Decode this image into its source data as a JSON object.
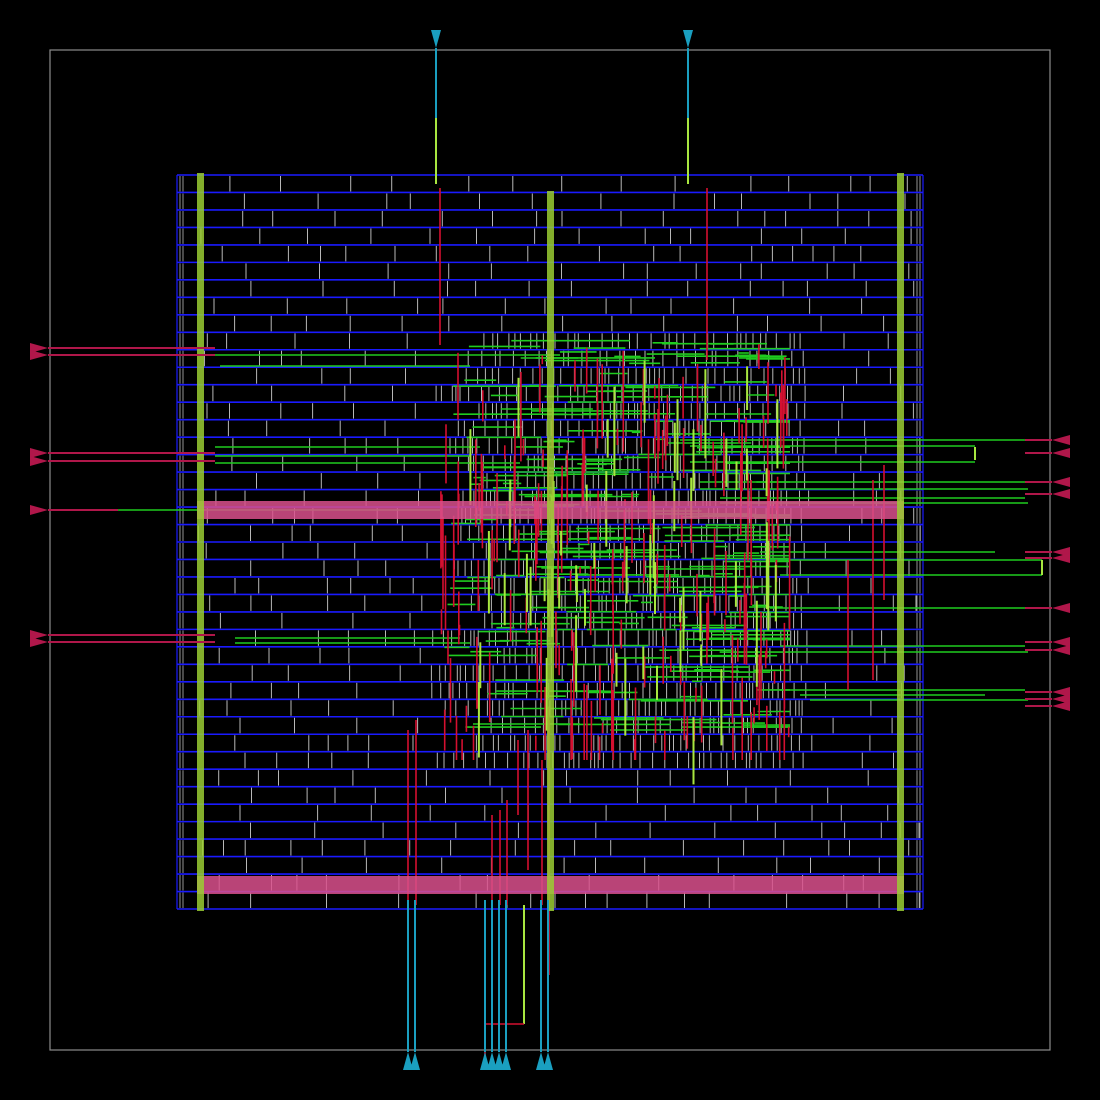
{
  "view": {
    "kind": "chip-layout",
    "colors": {
      "background": "#000000",
      "die_boundary": "#8c8c8c",
      "core_rows": "#1a1aff",
      "cell_boundaries": "#b8b8b8",
      "metal_horizontal": "#1fcc1f",
      "metal_vertical": "#d41030",
      "metal_upper": "#a8e640",
      "power_straps_vertical": "#9acd32",
      "power_straps_horizontal": "#d9508c",
      "pins_left_right": "#b0174a",
      "pins_top_bottom": "#1a9fc0"
    }
  },
  "pins": {
    "top_count": 2,
    "bottom_count": 8,
    "left_count": 7,
    "right_count": 14
  },
  "core": {
    "row_count": 42,
    "vertical_power_straps": 3,
    "horizontal_power_straps": 2
  }
}
